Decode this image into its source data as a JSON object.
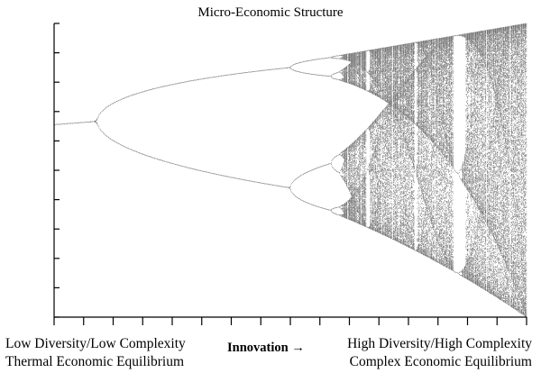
{
  "figure": {
    "title": "Micro-Economic Structure",
    "left_caption": [
      "Low Diversity/Low Complexity",
      "Thermal Economic Equilibrium"
    ],
    "middle_caption": "Innovation →",
    "right_caption": [
      "High Diversity/High Complexity",
      "Complex Economic Equilibrium"
    ]
  },
  "chart_data": {
    "type": "scatter",
    "title": "Micro-Economic Structure",
    "xlabel": "Innovation →",
    "ylabel": "",
    "x_tick_labels": [],
    "y_tick_labels": [],
    "xlim": [
      2.9,
      4.0
    ],
    "ylim": [
      0.0,
      1.0
    ],
    "grid": false,
    "legend": "none",
    "map": "logistic x(n+1) = r·x(n)·(1−x(n))",
    "series": [
      {
        "values": [
          {
            "r": 2.9,
            "x": [
              0.655
            ]
          },
          {
            "r": 3.0,
            "x": [
              0.667
            ]
          },
          {
            "r": 3.2,
            "x": [
              0.513,
              0.799
            ]
          },
          {
            "r": 3.5,
            "x": [
              0.383,
              0.501,
              0.827,
              0.875
            ]
          },
          {
            "r": 3.57,
            "x_range": [
              0.33,
              0.89
            ]
          },
          {
            "r": 3.83,
            "x": [
              0.156,
              0.505,
              0.957
            ]
          },
          {
            "r": 4.0,
            "x_range": [
              0.0,
              1.0
            ]
          }
        ]
      }
    ],
    "colors": {
      "points": "#000000",
      "background": "#ffffff",
      "axes": "#000000"
    }
  }
}
